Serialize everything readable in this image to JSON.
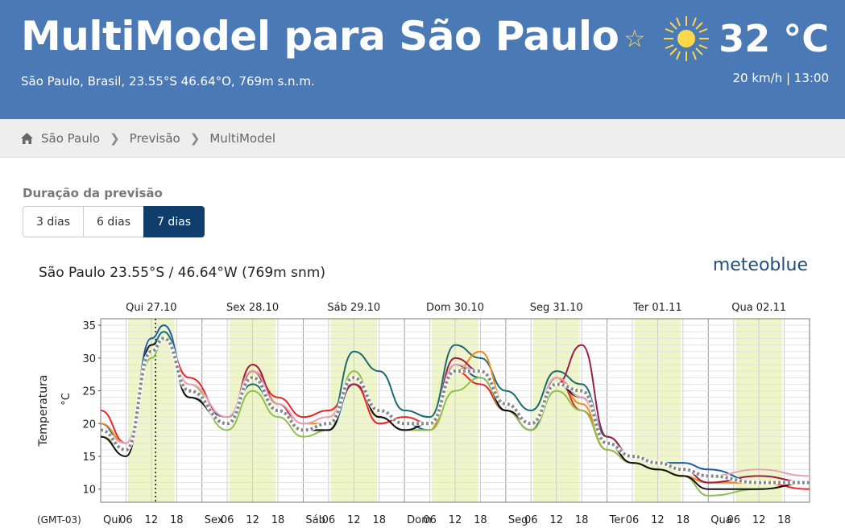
{
  "header": {
    "title": "MultiModel para São Paulo",
    "subtitle": "São Paulo, Brasil, 23.55°S 46.64°O, 769m s.n.m.",
    "temperature": "32 °C",
    "wind_time": "20 km/h  | 13:00",
    "icons": {
      "favorite": "star-icon",
      "weather": "sun-icon"
    }
  },
  "breadcrumb": {
    "items": [
      "São Paulo",
      "Previsão",
      "MultiModel"
    ],
    "icon": "home-icon"
  },
  "duration": {
    "label": "Duração da previsão",
    "options": [
      "3 dias",
      "6 dias",
      "7 dias"
    ],
    "selected": "7 dias"
  },
  "chart_data": {
    "type": "line",
    "title": "São Paulo  23.55°S / 46.64°W (769m snm)",
    "brand": "meteoblue",
    "ylabel": "Temperatura",
    "yunit": "°C",
    "timezone": "(GMT-03)",
    "ylim": [
      8,
      36
    ],
    "yticks": [
      10,
      15,
      20,
      25,
      30,
      35
    ],
    "days": [
      "Qui 27.10",
      "Sex 28.10",
      "Sáb 29.10",
      "Dom 30.10",
      "Seg 31.10",
      "Ter 01.11",
      "Qua 02.11"
    ],
    "day_short": [
      "Qui",
      "Sex",
      "Sáb",
      "Dom",
      "Seg",
      "Ter",
      "Qua"
    ],
    "hour_ticks": [
      "06",
      "12",
      "18"
    ],
    "x_unit": "hours since Qui 00:00",
    "current_time_hour": 13,
    "series": [
      {
        "color": "#e8262a",
        "x": [
          0,
          6,
          12,
          15,
          21,
          30,
          36,
          42,
          48,
          54,
          60,
          66,
          72,
          78,
          84,
          90,
          96,
          102,
          108,
          114,
          120,
          126,
          132,
          138,
          144,
          156,
          168
        ],
        "y": [
          22,
          17,
          31,
          33,
          27,
          20,
          28,
          24,
          21,
          22,
          26,
          20,
          21,
          20,
          28,
          26,
          22,
          19,
          27,
          22,
          17,
          14,
          13,
          12,
          11,
          11,
          10
        ]
      },
      {
        "color": "#1e5aa8",
        "x": [
          0,
          6,
          12,
          15,
          21,
          30,
          36,
          42,
          48,
          54,
          60,
          66,
          72,
          78,
          84,
          90,
          96,
          102,
          108,
          114,
          120,
          126,
          132,
          138,
          144,
          156,
          168
        ],
        "y": [
          19,
          16,
          33,
          35,
          25,
          20,
          27,
          22,
          19,
          19,
          26,
          22,
          20,
          19,
          29,
          27,
          22,
          19,
          27,
          24,
          17,
          15,
          14,
          14,
          13,
          11,
          11
        ]
      },
      {
        "color": "#1b6b73",
        "x": [
          0,
          6,
          12,
          15,
          21,
          30,
          36,
          42,
          48,
          54,
          60,
          66,
          72,
          78,
          84,
          90,
          96,
          102,
          108,
          114,
          120,
          126,
          132,
          138,
          144,
          156,
          168
        ],
        "y": [
          20,
          16,
          32,
          34,
          24,
          21,
          26,
          22,
          19,
          20,
          31,
          28,
          22,
          21,
          32,
          30,
          25,
          22,
          28,
          26,
          18,
          15,
          14,
          13,
          12,
          11,
          11
        ]
      },
      {
        "color": "#f08a1c",
        "x": [
          0,
          6,
          12,
          15,
          21,
          30,
          36,
          42,
          48,
          54,
          60,
          66,
          72,
          78,
          84,
          90,
          96,
          102,
          108,
          114,
          120,
          126,
          132,
          138,
          144,
          156,
          168
        ],
        "y": [
          20,
          17,
          31,
          33,
          25,
          20,
          29,
          23,
          20,
          20,
          27,
          21,
          19,
          19,
          28,
          31,
          23,
          20,
          27,
          23,
          16,
          14,
          13,
          12,
          11,
          11,
          11
        ]
      },
      {
        "color": "#8fc04d",
        "x": [
          0,
          6,
          12,
          15,
          21,
          30,
          36,
          42,
          48,
          54,
          60,
          66,
          72,
          78,
          84,
          90,
          96,
          102,
          108,
          114,
          120,
          126,
          132,
          138,
          144,
          156,
          168
        ],
        "y": [
          18,
          16,
          30,
          33,
          26,
          19,
          25,
          21,
          18,
          19,
          28,
          21,
          19,
          19,
          25,
          27,
          22,
          19,
          25,
          22,
          16,
          14,
          13,
          12,
          9,
          10,
          11
        ]
      },
      {
        "color": "#9c1f4a",
        "x": [
          0,
          6,
          12,
          15,
          21,
          30,
          36,
          42,
          48,
          54,
          60,
          66,
          72,
          78,
          84,
          90,
          96,
          102,
          108,
          114,
          120,
          126,
          132,
          138,
          144,
          156,
          168
        ],
        "y": [
          19,
          16,
          31,
          33,
          25,
          20,
          29,
          23,
          19,
          20,
          26,
          22,
          20,
          20,
          30,
          28,
          22,
          20,
          26,
          32,
          18,
          15,
          14,
          13,
          11,
          12,
          11
        ]
      },
      {
        "color": "#111111",
        "x": [
          0,
          6,
          12,
          15,
          21,
          30,
          36,
          42,
          48,
          54,
          60,
          66,
          72,
          78,
          84,
          90,
          96,
          102,
          108,
          114,
          120,
          126,
          132,
          138,
          144,
          156,
          168
        ],
        "y": [
          18,
          15,
          32,
          33,
          24,
          20,
          28,
          22,
          19,
          19,
          27,
          21,
          19,
          20,
          28,
          28,
          22,
          20,
          26,
          24,
          17,
          14,
          13,
          12,
          10,
          10,
          11
        ]
      },
      {
        "color": "#e6a0b8",
        "x": [
          0,
          6,
          12,
          15,
          21,
          30,
          36,
          42,
          48,
          54,
          60,
          66,
          72,
          78,
          84,
          90,
          96,
          102,
          108,
          114,
          120,
          126,
          132,
          138,
          144,
          156,
          168
        ],
        "y": [
          19,
          17,
          31,
          33,
          26,
          21,
          28,
          23,
          20,
          21,
          27,
          22,
          20,
          20,
          29,
          28,
          23,
          20,
          27,
          24,
          17,
          15,
          14,
          13,
          12,
          13,
          12
        ]
      },
      {
        "color": "#888888",
        "dashed": true,
        "x": [
          0,
          6,
          12,
          15,
          21,
          30,
          36,
          42,
          48,
          54,
          60,
          66,
          72,
          78,
          84,
          90,
          96,
          102,
          108,
          114,
          120,
          126,
          132,
          138,
          144,
          156,
          168
        ],
        "y": [
          19,
          16,
          31,
          33,
          25,
          20,
          27,
          22,
          19,
          20,
          27,
          22,
          20,
          20,
          28,
          28,
          23,
          20,
          26,
          25,
          17,
          15,
          14,
          13,
          12,
          11,
          11
        ]
      }
    ]
  }
}
